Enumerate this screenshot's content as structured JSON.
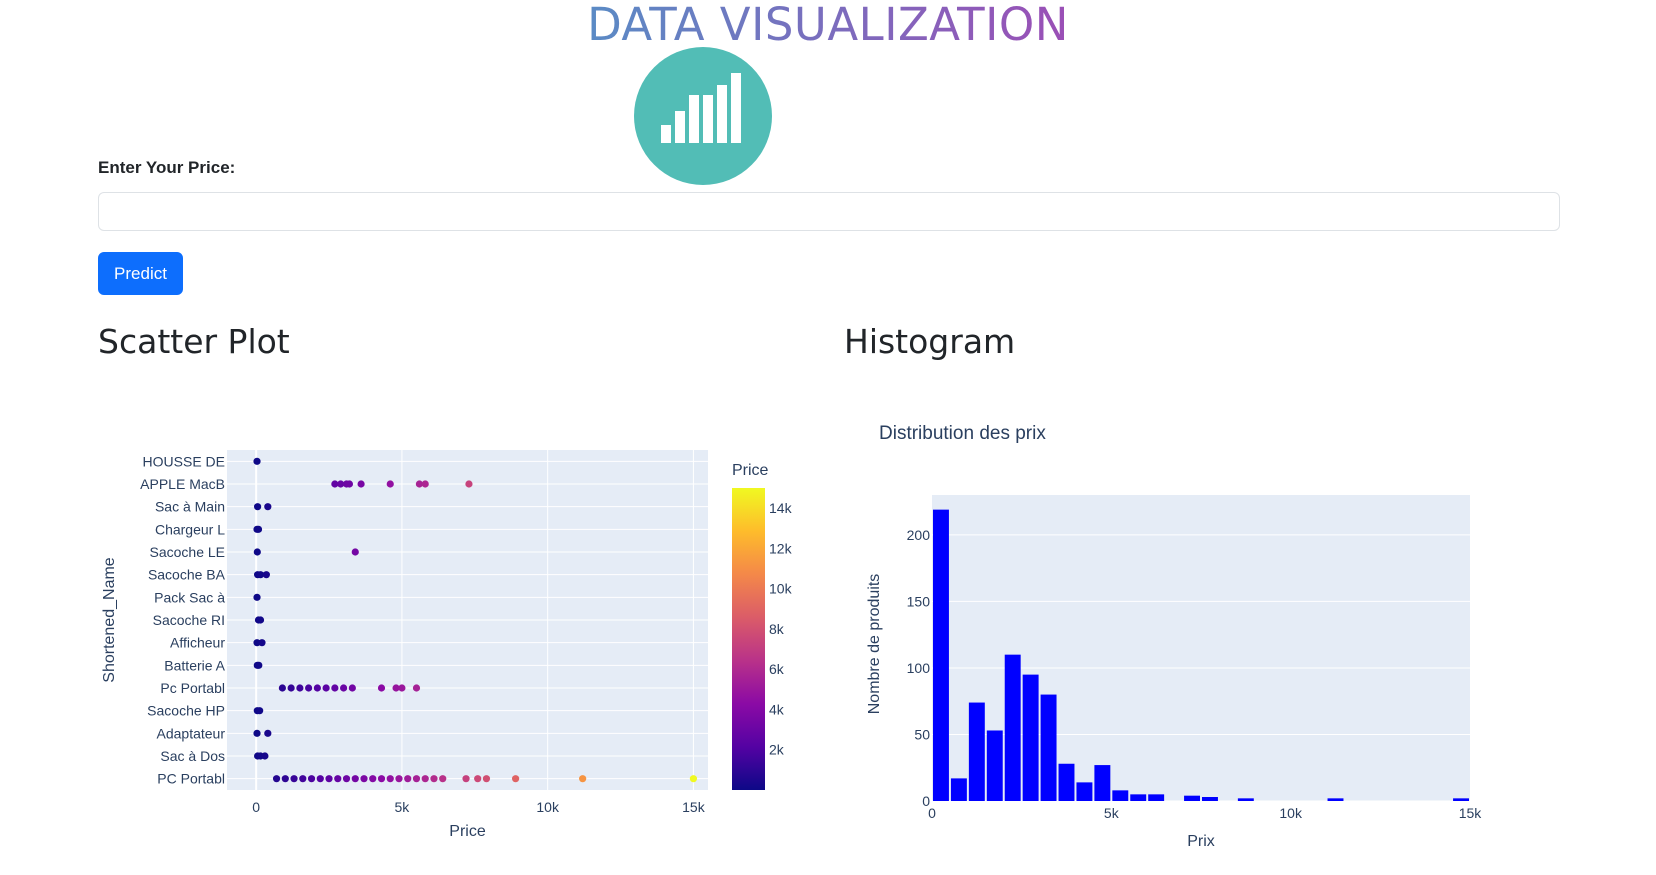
{
  "header": {
    "title": "DATA VISUALIZATION",
    "logo_icon": "bar-chart-icon"
  },
  "form": {
    "price_label": "Enter Your Price:",
    "price_value": "",
    "price_placeholder": "",
    "predict_label": "Predict"
  },
  "sections": {
    "scatter_title": "Scatter Plot",
    "histogram_title": "Histogram"
  },
  "colors": {
    "primary_button": "#0d6efd",
    "logo_bg": "#52bdb6",
    "histogram_bar": "#0000ff",
    "plot_bg": "#e5ecf6"
  },
  "chart_data": [
    {
      "type": "scatter",
      "title": "",
      "xlabel": "Price",
      "ylabel": "Shortened_Name",
      "xlim": [
        -1000,
        15500
      ],
      "xticks": [
        0,
        5000,
        10000,
        15000
      ],
      "xtick_labels": [
        "0",
        "5k",
        "10k",
        "15k"
      ],
      "categories": [
        "HOUSSE DE",
        "APPLE MacB",
        "Sac à Main",
        "Chargeur L",
        "Sacoche LE",
        "Sacoche BA",
        "Pack Sac à",
        "Sacoche RI",
        "Afficheur",
        "Batterie A",
        "Pc Portabl",
        "Sacoche HP",
        "Adaptateur",
        "Sac à Dos",
        "PC Portabl"
      ],
      "colorbar": {
        "title": "Price",
        "min": 0,
        "max": 15000,
        "ticks": [
          2000,
          4000,
          6000,
          8000,
          10000,
          12000,
          14000
        ],
        "tick_labels": [
          "2k",
          "4k",
          "6k",
          "8k",
          "10k",
          "12k",
          "14k"
        ]
      },
      "points": [
        {
          "category": "HOUSSE DE",
          "price": 30
        },
        {
          "category": "APPLE MacB",
          "price": 2700
        },
        {
          "category": "APPLE MacB",
          "price": 2900
        },
        {
          "category": "APPLE MacB",
          "price": 3100
        },
        {
          "category": "APPLE MacB",
          "price": 3200
        },
        {
          "category": "APPLE MacB",
          "price": 3600
        },
        {
          "category": "APPLE MacB",
          "price": 4600
        },
        {
          "category": "APPLE MacB",
          "price": 5600
        },
        {
          "category": "APPLE MacB",
          "price": 5800
        },
        {
          "category": "APPLE MacB",
          "price": 7300
        },
        {
          "category": "Sac à Main",
          "price": 50
        },
        {
          "category": "Sac à Main",
          "price": 400
        },
        {
          "category": "Chargeur L",
          "price": 30
        },
        {
          "category": "Chargeur L",
          "price": 80
        },
        {
          "category": "Sacoche LE",
          "price": 40
        },
        {
          "category": "Sacoche LE",
          "price": 3400
        },
        {
          "category": "Sacoche BA",
          "price": 50
        },
        {
          "category": "Sacoche BA",
          "price": 150
        },
        {
          "category": "Sacoche BA",
          "price": 350
        },
        {
          "category": "Pack Sac à",
          "price": 30
        },
        {
          "category": "Sacoche RI",
          "price": 80
        },
        {
          "category": "Sacoche RI",
          "price": 150
        },
        {
          "category": "Afficheur",
          "price": 30
        },
        {
          "category": "Afficheur",
          "price": 200
        },
        {
          "category": "Batterie A",
          "price": 40
        },
        {
          "category": "Batterie A",
          "price": 90
        },
        {
          "category": "Pc Portabl",
          "price": 900
        },
        {
          "category": "Pc Portabl",
          "price": 1200
        },
        {
          "category": "Pc Portabl",
          "price": 1500
        },
        {
          "category": "Pc Portabl",
          "price": 1800
        },
        {
          "category": "Pc Portabl",
          "price": 2100
        },
        {
          "category": "Pc Portabl",
          "price": 2400
        },
        {
          "category": "Pc Portabl",
          "price": 2700
        },
        {
          "category": "Pc Portabl",
          "price": 3000
        },
        {
          "category": "Pc Portabl",
          "price": 3300
        },
        {
          "category": "Pc Portabl",
          "price": 4300
        },
        {
          "category": "Pc Portabl",
          "price": 4800
        },
        {
          "category": "Pc Portabl",
          "price": 5000
        },
        {
          "category": "Pc Portabl",
          "price": 5500
        },
        {
          "category": "Sacoche HP",
          "price": 40
        },
        {
          "category": "Sacoche HP",
          "price": 120
        },
        {
          "category": "Adaptateur",
          "price": 30
        },
        {
          "category": "Adaptateur",
          "price": 400
        },
        {
          "category": "Sac à Dos",
          "price": 50
        },
        {
          "category": "Sac à Dos",
          "price": 150
        },
        {
          "category": "Sac à Dos",
          "price": 300
        },
        {
          "category": "PC Portabl",
          "price": 700
        },
        {
          "category": "PC Portabl",
          "price": 1000
        },
        {
          "category": "PC Portabl",
          "price": 1300
        },
        {
          "category": "PC Portabl",
          "price": 1600
        },
        {
          "category": "PC Portabl",
          "price": 1900
        },
        {
          "category": "PC Portabl",
          "price": 2200
        },
        {
          "category": "PC Portabl",
          "price": 2500
        },
        {
          "category": "PC Portabl",
          "price": 2800
        },
        {
          "category": "PC Portabl",
          "price": 3100
        },
        {
          "category": "PC Portabl",
          "price": 3400
        },
        {
          "category": "PC Portabl",
          "price": 3700
        },
        {
          "category": "PC Portabl",
          "price": 4000
        },
        {
          "category": "PC Portabl",
          "price": 4300
        },
        {
          "category": "PC Portabl",
          "price": 4600
        },
        {
          "category": "PC Portabl",
          "price": 4900
        },
        {
          "category": "PC Portabl",
          "price": 5200
        },
        {
          "category": "PC Portabl",
          "price": 5500
        },
        {
          "category": "PC Portabl",
          "price": 5800
        },
        {
          "category": "PC Portabl",
          "price": 6100
        },
        {
          "category": "PC Portabl",
          "price": 6400
        },
        {
          "category": "PC Portabl",
          "price": 7200
        },
        {
          "category": "PC Portabl",
          "price": 7600
        },
        {
          "category": "PC Portabl",
          "price": 7900
        },
        {
          "category": "PC Portabl",
          "price": 8900
        },
        {
          "category": "PC Portabl",
          "price": 11200
        },
        {
          "category": "PC Portabl",
          "price": 15000
        }
      ]
    },
    {
      "type": "bar",
      "title": "Distribution des prix",
      "xlabel": "Prix",
      "ylabel": "Nombre de produits",
      "xlim": [
        0,
        15000
      ],
      "ylim": [
        0,
        230
      ],
      "xticks": [
        0,
        5000,
        10000,
        15000
      ],
      "xtick_labels": [
        "0",
        "5k",
        "10k",
        "15k"
      ],
      "yticks": [
        0,
        50,
        100,
        150,
        200
      ],
      "bin_width": 500,
      "bins": [
        {
          "start": 0,
          "count": 219
        },
        {
          "start": 500,
          "count": 17
        },
        {
          "start": 1000,
          "count": 74
        },
        {
          "start": 1500,
          "count": 53
        },
        {
          "start": 2000,
          "count": 110
        },
        {
          "start": 2500,
          "count": 95
        },
        {
          "start": 3000,
          "count": 80
        },
        {
          "start": 3500,
          "count": 28
        },
        {
          "start": 4000,
          "count": 14
        },
        {
          "start": 4500,
          "count": 27
        },
        {
          "start": 5000,
          "count": 8
        },
        {
          "start": 5500,
          "count": 5
        },
        {
          "start": 6000,
          "count": 5
        },
        {
          "start": 6500,
          "count": 0
        },
        {
          "start": 7000,
          "count": 4
        },
        {
          "start": 7500,
          "count": 3
        },
        {
          "start": 8000,
          "count": 0
        },
        {
          "start": 8500,
          "count": 2
        },
        {
          "start": 9000,
          "count": 0
        },
        {
          "start": 9500,
          "count": 0
        },
        {
          "start": 10000,
          "count": 0
        },
        {
          "start": 10500,
          "count": 0
        },
        {
          "start": 11000,
          "count": 2
        },
        {
          "start": 11500,
          "count": 0
        },
        {
          "start": 12000,
          "count": 0
        },
        {
          "start": 12500,
          "count": 0
        },
        {
          "start": 13000,
          "count": 0
        },
        {
          "start": 13500,
          "count": 0
        },
        {
          "start": 14000,
          "count": 0
        },
        {
          "start": 14500,
          "count": 2
        }
      ]
    }
  ]
}
